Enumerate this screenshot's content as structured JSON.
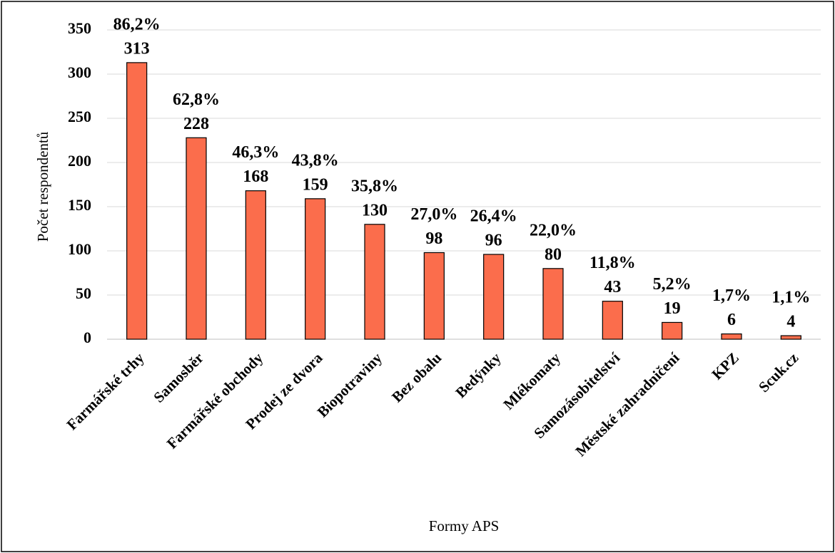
{
  "chart_data": {
    "type": "bar",
    "categories": [
      "Farmářské trhy",
      "Samosběr",
      "Farmářské obchody",
      "Prodej ze dvora",
      "Biopotraviny",
      "Bez obalu",
      "Bedýnky",
      "Mlékomaty",
      "Samozásobitelství",
      "Městské zahradničení",
      "KPZ",
      "Scuk.cz"
    ],
    "values": [
      313,
      228,
      168,
      159,
      130,
      98,
      96,
      80,
      43,
      19,
      6,
      4
    ],
    "percent_labels": [
      "86,2%",
      "62,8%",
      "46,3%",
      "43,8%",
      "35,8%",
      "27,0%",
      "26,4%",
      "22,0%",
      "11,8%",
      "5,2%",
      "1,7%",
      "1,1%"
    ],
    "color": "#fb6d4c",
    "ylabel": "Počet respondentů",
    "xlabel": "Formy APS",
    "ylim": [
      0,
      350
    ],
    "yticks": [
      0,
      50,
      100,
      150,
      200,
      250,
      300,
      350
    ],
    "grid": true
  }
}
